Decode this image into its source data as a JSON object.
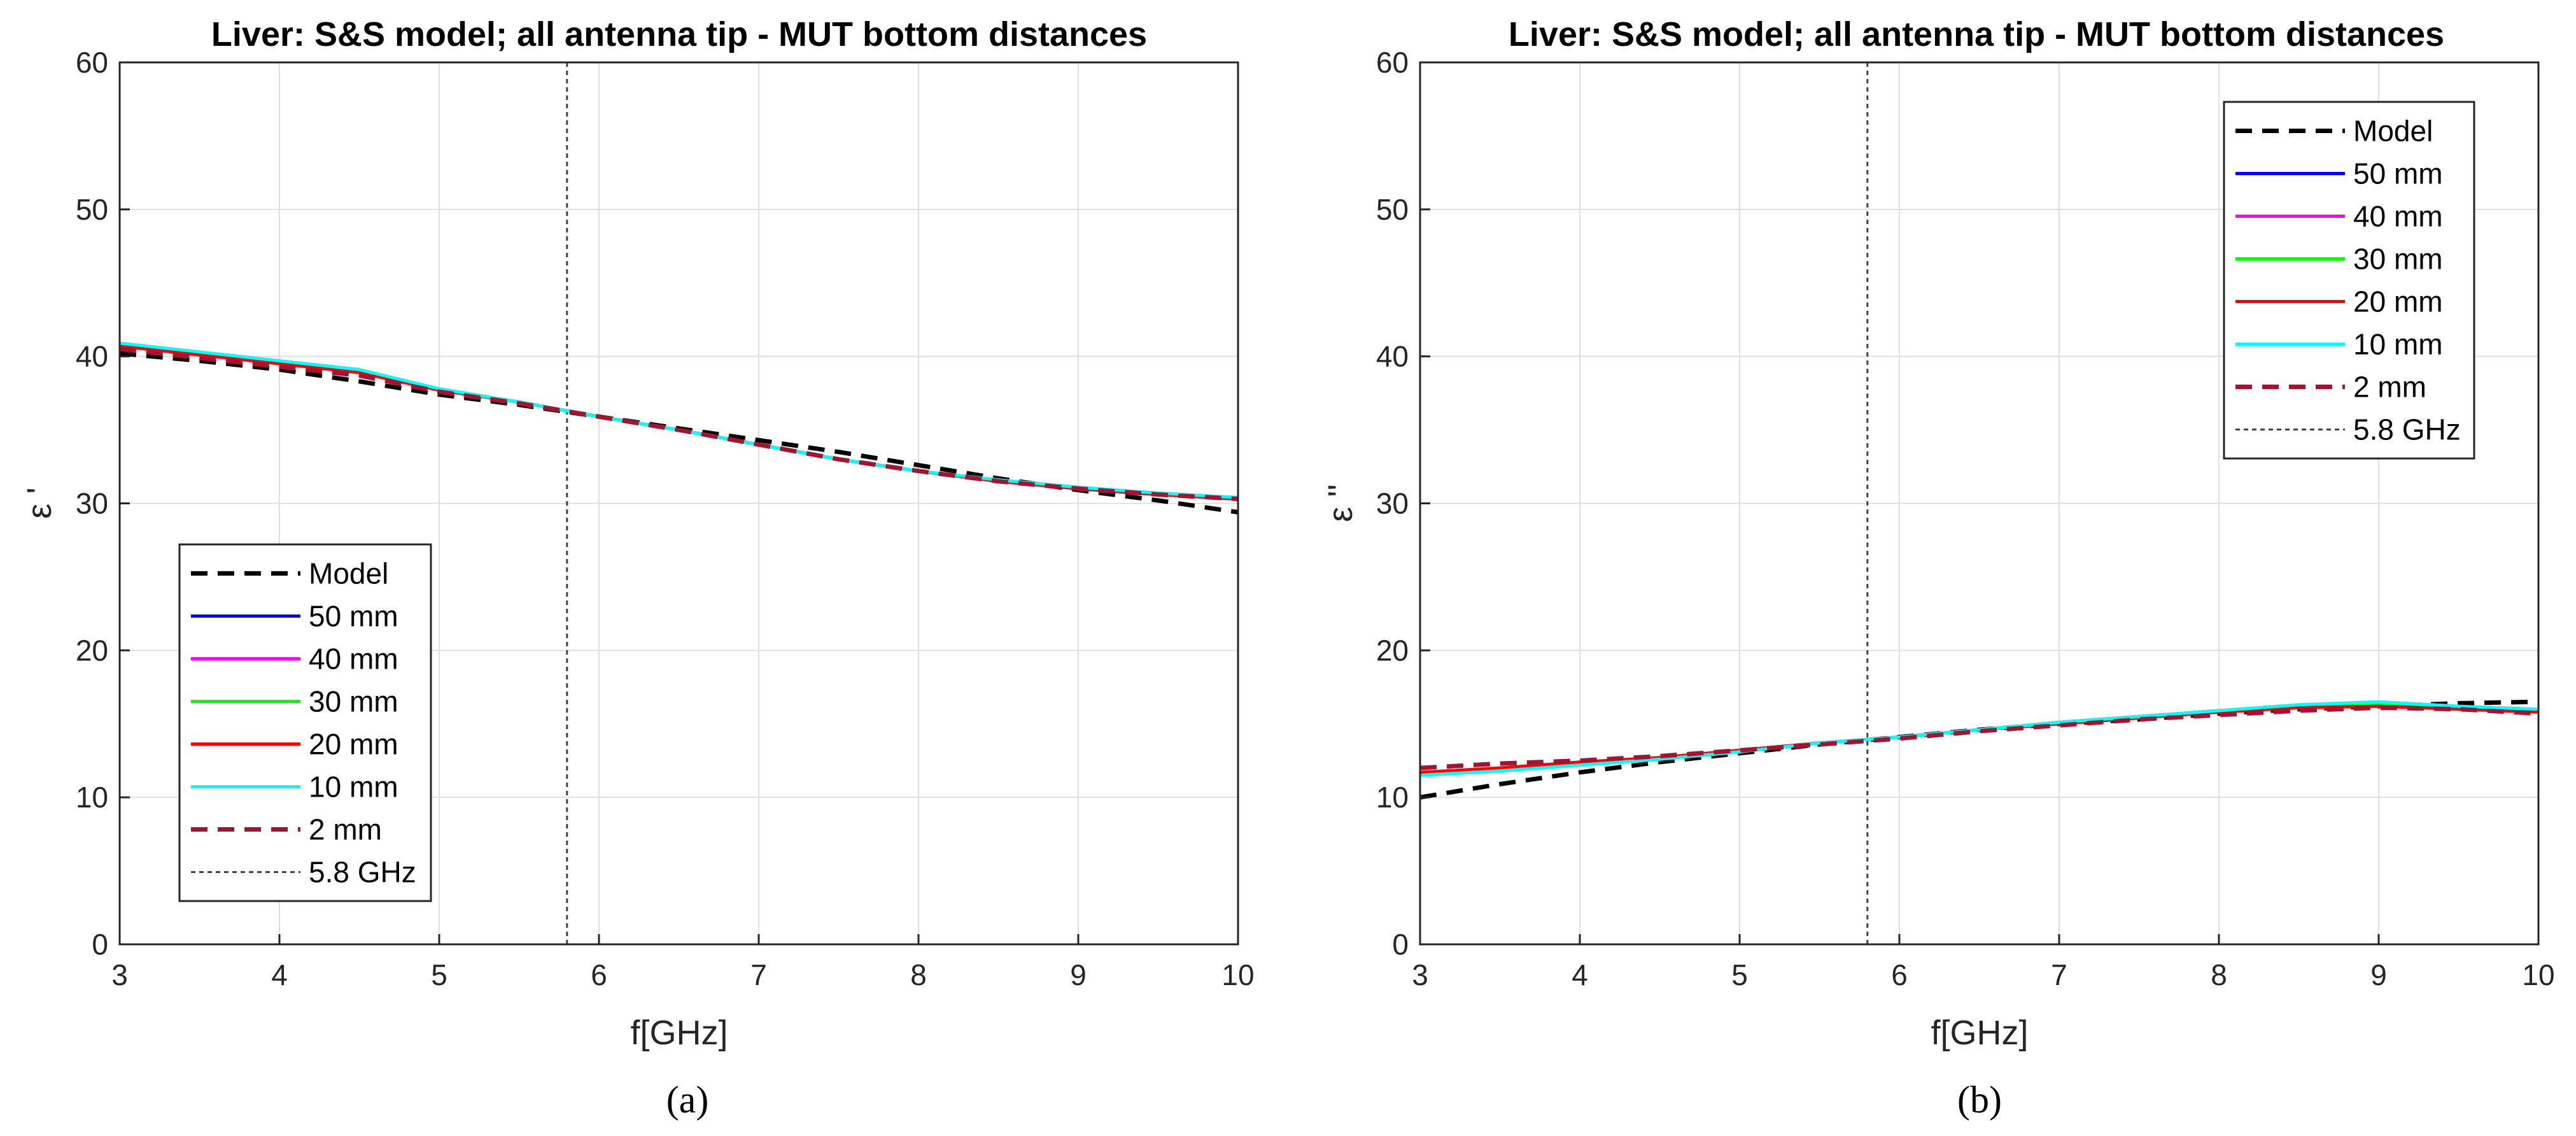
{
  "chart_data": [
    {
      "type": "line",
      "panel": "a",
      "title": "Liver: S&S model; all antenna tip - MUT bottom distances",
      "xlabel": "f[GHz]",
      "ylabel": "ε '",
      "caption": "(a)",
      "xlim": [
        3,
        10
      ],
      "ylim": [
        0,
        60
      ],
      "xticks": [
        "3",
        "4",
        "5",
        "6",
        "7",
        "8",
        "9",
        "10"
      ],
      "yticks": [
        "0",
        "10",
        "20",
        "30",
        "40",
        "50",
        "60"
      ],
      "xtick_values": [
        3,
        4,
        5,
        6,
        7,
        8,
        9,
        10
      ],
      "ytick_values": [
        0,
        10,
        20,
        30,
        40,
        50,
        60
      ],
      "grid": true,
      "legend_position": "bottom-left",
      "vline": {
        "x": 5.8,
        "label": "5.8 GHz"
      },
      "x": [
        3,
        3.5,
        4,
        4.5,
        5,
        5.5,
        6,
        6.5,
        7,
        7.5,
        8,
        8.5,
        9,
        9.5,
        10
      ],
      "series": [
        {
          "name": "Model",
          "color": "#000000",
          "style": "dash",
          "values": [
            40.2,
            39.7,
            39.1,
            38.3,
            37.4,
            36.7,
            35.9,
            35.1,
            34.3,
            33.5,
            32.6,
            31.7,
            30.9,
            30.2,
            29.4
          ]
        },
        {
          "name": "50 mm",
          "color": "#0000ff",
          "style": "solid",
          "values": [
            40.8,
            40.2,
            39.6,
            39.0,
            37.7,
            36.9,
            35.9,
            35.0,
            34.0,
            33.0,
            32.2,
            31.5,
            31.0,
            30.6,
            30.3
          ]
        },
        {
          "name": "40 mm",
          "color": "#ff00ff",
          "style": "solid",
          "values": [
            40.8,
            40.2,
            39.6,
            39.0,
            37.7,
            36.9,
            35.9,
            35.0,
            34.0,
            33.0,
            32.2,
            31.5,
            31.0,
            30.6,
            30.3
          ]
        },
        {
          "name": "30 mm",
          "color": "#00ff00",
          "style": "solid",
          "values": [
            40.8,
            40.2,
            39.6,
            39.0,
            37.7,
            36.9,
            35.9,
            35.0,
            34.0,
            33.0,
            32.2,
            31.5,
            31.0,
            30.6,
            30.3
          ]
        },
        {
          "name": "20 mm",
          "color": "#ff0000",
          "style": "solid",
          "values": [
            40.7,
            40.1,
            39.5,
            38.9,
            37.7,
            36.9,
            35.9,
            35.0,
            34.0,
            33.0,
            32.2,
            31.5,
            31.0,
            30.6,
            30.3
          ]
        },
        {
          "name": "10 mm",
          "color": "#00ffff",
          "style": "solid",
          "values": [
            40.9,
            40.3,
            39.7,
            39.1,
            37.8,
            36.9,
            35.9,
            35.0,
            34.0,
            33.0,
            32.2,
            31.6,
            31.1,
            30.7,
            30.4
          ]
        },
        {
          "name": "2 mm",
          "color": "#a2142f",
          "style": "dash",
          "values": [
            40.5,
            39.9,
            39.3,
            38.7,
            37.6,
            36.8,
            35.9,
            35.0,
            34.0,
            33.0,
            32.2,
            31.5,
            31.0,
            30.6,
            30.3
          ]
        }
      ]
    },
    {
      "type": "line",
      "panel": "b",
      "title": "Liver: S&S model; all antenna tip - MUT bottom distances",
      "xlabel": "f[GHz]",
      "ylabel": "ε ''",
      "caption": "(b)",
      "xlim": [
        3,
        10
      ],
      "ylim": [
        0,
        60
      ],
      "xticks": [
        "3",
        "4",
        "5",
        "6",
        "7",
        "8",
        "9",
        "10"
      ],
      "yticks": [
        "0",
        "10",
        "20",
        "30",
        "40",
        "50",
        "60"
      ],
      "xtick_values": [
        3,
        4,
        5,
        6,
        7,
        8,
        9,
        10
      ],
      "ytick_values": [
        0,
        10,
        20,
        30,
        40,
        50,
        60
      ],
      "grid": true,
      "legend_position": "top-right",
      "vline": {
        "x": 5.8,
        "label": "5.8 GHz"
      },
      "x": [
        3,
        3.5,
        4,
        4.5,
        5,
        5.5,
        6,
        6.5,
        7,
        7.5,
        8,
        8.5,
        9,
        9.5,
        10
      ],
      "series": [
        {
          "name": "Model",
          "color": "#000000",
          "style": "dash",
          "values": [
            10.0,
            10.9,
            11.7,
            12.4,
            13.0,
            13.6,
            14.1,
            14.6,
            15.0,
            15.3,
            15.7,
            16.0,
            16.2,
            16.4,
            16.5
          ]
        },
        {
          "name": "50 mm",
          "color": "#0000ff",
          "style": "solid",
          "values": [
            11.6,
            11.9,
            12.3,
            12.7,
            13.2,
            13.7,
            14.1,
            14.6,
            15.1,
            15.5,
            15.9,
            16.2,
            16.4,
            16.1,
            15.9
          ]
        },
        {
          "name": "40 mm",
          "color": "#ff00ff",
          "style": "solid",
          "values": [
            11.6,
            11.9,
            12.3,
            12.7,
            13.2,
            13.7,
            14.1,
            14.6,
            15.1,
            15.5,
            15.9,
            16.2,
            16.4,
            16.1,
            15.9
          ]
        },
        {
          "name": "30 mm",
          "color": "#00ff00",
          "style": "solid",
          "values": [
            11.6,
            11.9,
            12.3,
            12.7,
            13.2,
            13.7,
            14.1,
            14.6,
            15.1,
            15.5,
            15.9,
            16.2,
            16.4,
            16.1,
            15.9
          ]
        },
        {
          "name": "20 mm",
          "color": "#ff0000",
          "style": "solid",
          "values": [
            11.7,
            12.0,
            12.4,
            12.7,
            13.2,
            13.7,
            14.1,
            14.6,
            15.0,
            15.4,
            15.8,
            16.1,
            16.2,
            16.0,
            15.8
          ]
        },
        {
          "name": "10 mm",
          "color": "#00ffff",
          "style": "solid",
          "values": [
            11.5,
            11.8,
            12.2,
            12.6,
            13.1,
            13.7,
            14.1,
            14.6,
            15.1,
            15.5,
            15.9,
            16.3,
            16.5,
            16.2,
            16.0
          ]
        },
        {
          "name": "2 mm",
          "color": "#a2142f",
          "style": "dash",
          "values": [
            12.0,
            12.3,
            12.5,
            12.8,
            13.2,
            13.6,
            14.0,
            14.5,
            14.9,
            15.3,
            15.6,
            15.9,
            16.1,
            16.0,
            15.7
          ]
        }
      ]
    }
  ]
}
